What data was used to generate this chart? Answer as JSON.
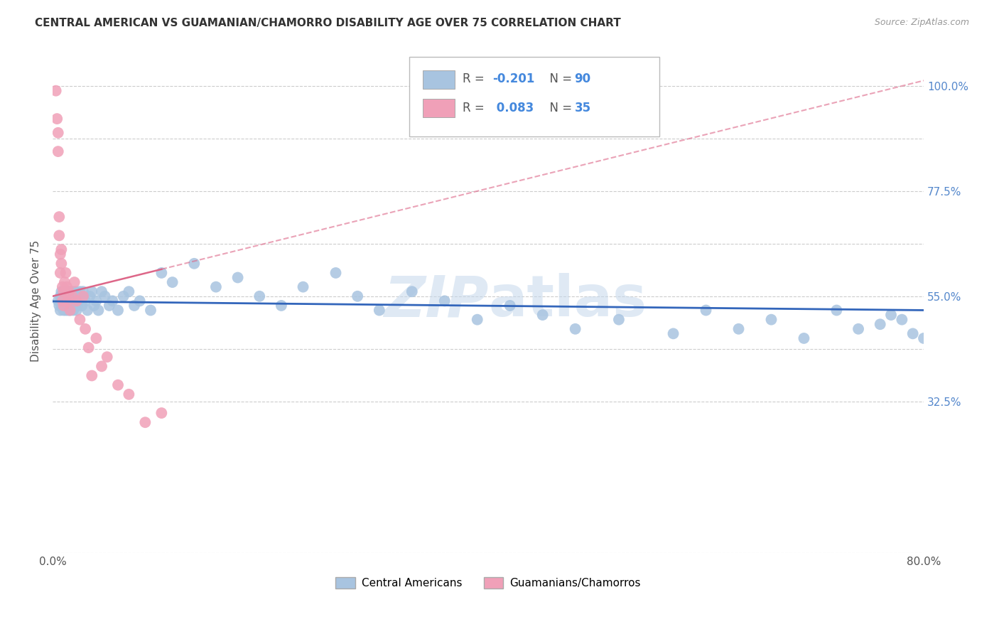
{
  "title": "CENTRAL AMERICAN VS GUAMANIAN/CHAMORRO DISABILITY AGE OVER 75 CORRELATION CHART",
  "source": "Source: ZipAtlas.com",
  "ylabel": "Disability Age Over 75",
  "x_min": 0.0,
  "x_max": 0.8,
  "y_min": 0.0,
  "y_max": 1.08,
  "x_ticks": [
    0.0,
    0.1,
    0.2,
    0.3,
    0.4,
    0.5,
    0.6,
    0.7,
    0.8
  ],
  "x_tick_labels": [
    "0.0%",
    "",
    "",
    "",
    "",
    "",
    "",
    "",
    "80.0%"
  ],
  "y_ticks": [
    0.0,
    0.325,
    0.4375,
    0.55,
    0.6625,
    0.775,
    0.8875,
    1.0
  ],
  "y_tick_labels_right": [
    "",
    "32.5%",
    "",
    "55.0%",
    "",
    "77.5%",
    "",
    "100.0%"
  ],
  "blue_R": -0.201,
  "blue_N": 90,
  "pink_R": 0.083,
  "pink_N": 35,
  "blue_color": "#a8c4e0",
  "pink_color": "#f0a0b8",
  "blue_line_color": "#3366bb",
  "pink_line_color": "#dd6688",
  "grid_color": "#cccccc",
  "watermark_color": "#c5d8ec",
  "legend_label_blue": "Central Americans",
  "legend_label_pink": "Guamanians/Chamorros",
  "blue_scatter_x": [
    0.005,
    0.006,
    0.007,
    0.007,
    0.008,
    0.008,
    0.009,
    0.009,
    0.01,
    0.01,
    0.01,
    0.011,
    0.011,
    0.012,
    0.012,
    0.012,
    0.013,
    0.013,
    0.013,
    0.014,
    0.014,
    0.015,
    0.015,
    0.015,
    0.016,
    0.016,
    0.017,
    0.017,
    0.018,
    0.018,
    0.019,
    0.02,
    0.02,
    0.021,
    0.021,
    0.022,
    0.022,
    0.023,
    0.024,
    0.025,
    0.026,
    0.027,
    0.028,
    0.03,
    0.032,
    0.034,
    0.036,
    0.038,
    0.04,
    0.042,
    0.045,
    0.048,
    0.052,
    0.055,
    0.06,
    0.065,
    0.07,
    0.075,
    0.08,
    0.09,
    0.1,
    0.11,
    0.13,
    0.15,
    0.17,
    0.19,
    0.21,
    0.23,
    0.26,
    0.28,
    0.3,
    0.33,
    0.36,
    0.39,
    0.42,
    0.45,
    0.48,
    0.52,
    0.57,
    0.6,
    0.63,
    0.66,
    0.69,
    0.72,
    0.74,
    0.76,
    0.77,
    0.78,
    0.79,
    0.8
  ],
  "blue_scatter_y": [
    0.54,
    0.53,
    0.55,
    0.52,
    0.56,
    0.54,
    0.53,
    0.55,
    0.52,
    0.54,
    0.56,
    0.53,
    0.55,
    0.54,
    0.52,
    0.56,
    0.53,
    0.55,
    0.54,
    0.52,
    0.54,
    0.55,
    0.53,
    0.56,
    0.54,
    0.52,
    0.55,
    0.53,
    0.54,
    0.56,
    0.52,
    0.55,
    0.53,
    0.56,
    0.54,
    0.52,
    0.55,
    0.53,
    0.54,
    0.56,
    0.55,
    0.53,
    0.56,
    0.54,
    0.52,
    0.55,
    0.56,
    0.53,
    0.54,
    0.52,
    0.56,
    0.55,
    0.53,
    0.54,
    0.52,
    0.55,
    0.56,
    0.53,
    0.54,
    0.52,
    0.6,
    0.58,
    0.62,
    0.57,
    0.59,
    0.55,
    0.53,
    0.57,
    0.6,
    0.55,
    0.52,
    0.56,
    0.54,
    0.5,
    0.53,
    0.51,
    0.48,
    0.5,
    0.47,
    0.52,
    0.48,
    0.5,
    0.46,
    0.52,
    0.48,
    0.49,
    0.51,
    0.5,
    0.47,
    0.46
  ],
  "pink_scatter_x": [
    0.003,
    0.004,
    0.005,
    0.005,
    0.006,
    0.006,
    0.007,
    0.007,
    0.008,
    0.008,
    0.009,
    0.009,
    0.01,
    0.01,
    0.011,
    0.012,
    0.013,
    0.014,
    0.015,
    0.016,
    0.018,
    0.02,
    0.022,
    0.025,
    0.028,
    0.03,
    0.033,
    0.036,
    0.04,
    0.045,
    0.05,
    0.06,
    0.07,
    0.085,
    0.1
  ],
  "pink_scatter_y": [
    0.99,
    0.93,
    0.9,
    0.86,
    0.72,
    0.68,
    0.64,
    0.6,
    0.65,
    0.62,
    0.57,
    0.54,
    0.56,
    0.53,
    0.58,
    0.6,
    0.57,
    0.54,
    0.56,
    0.52,
    0.55,
    0.58,
    0.54,
    0.5,
    0.55,
    0.48,
    0.44,
    0.38,
    0.46,
    0.4,
    0.42,
    0.36,
    0.34,
    0.28,
    0.3
  ]
}
